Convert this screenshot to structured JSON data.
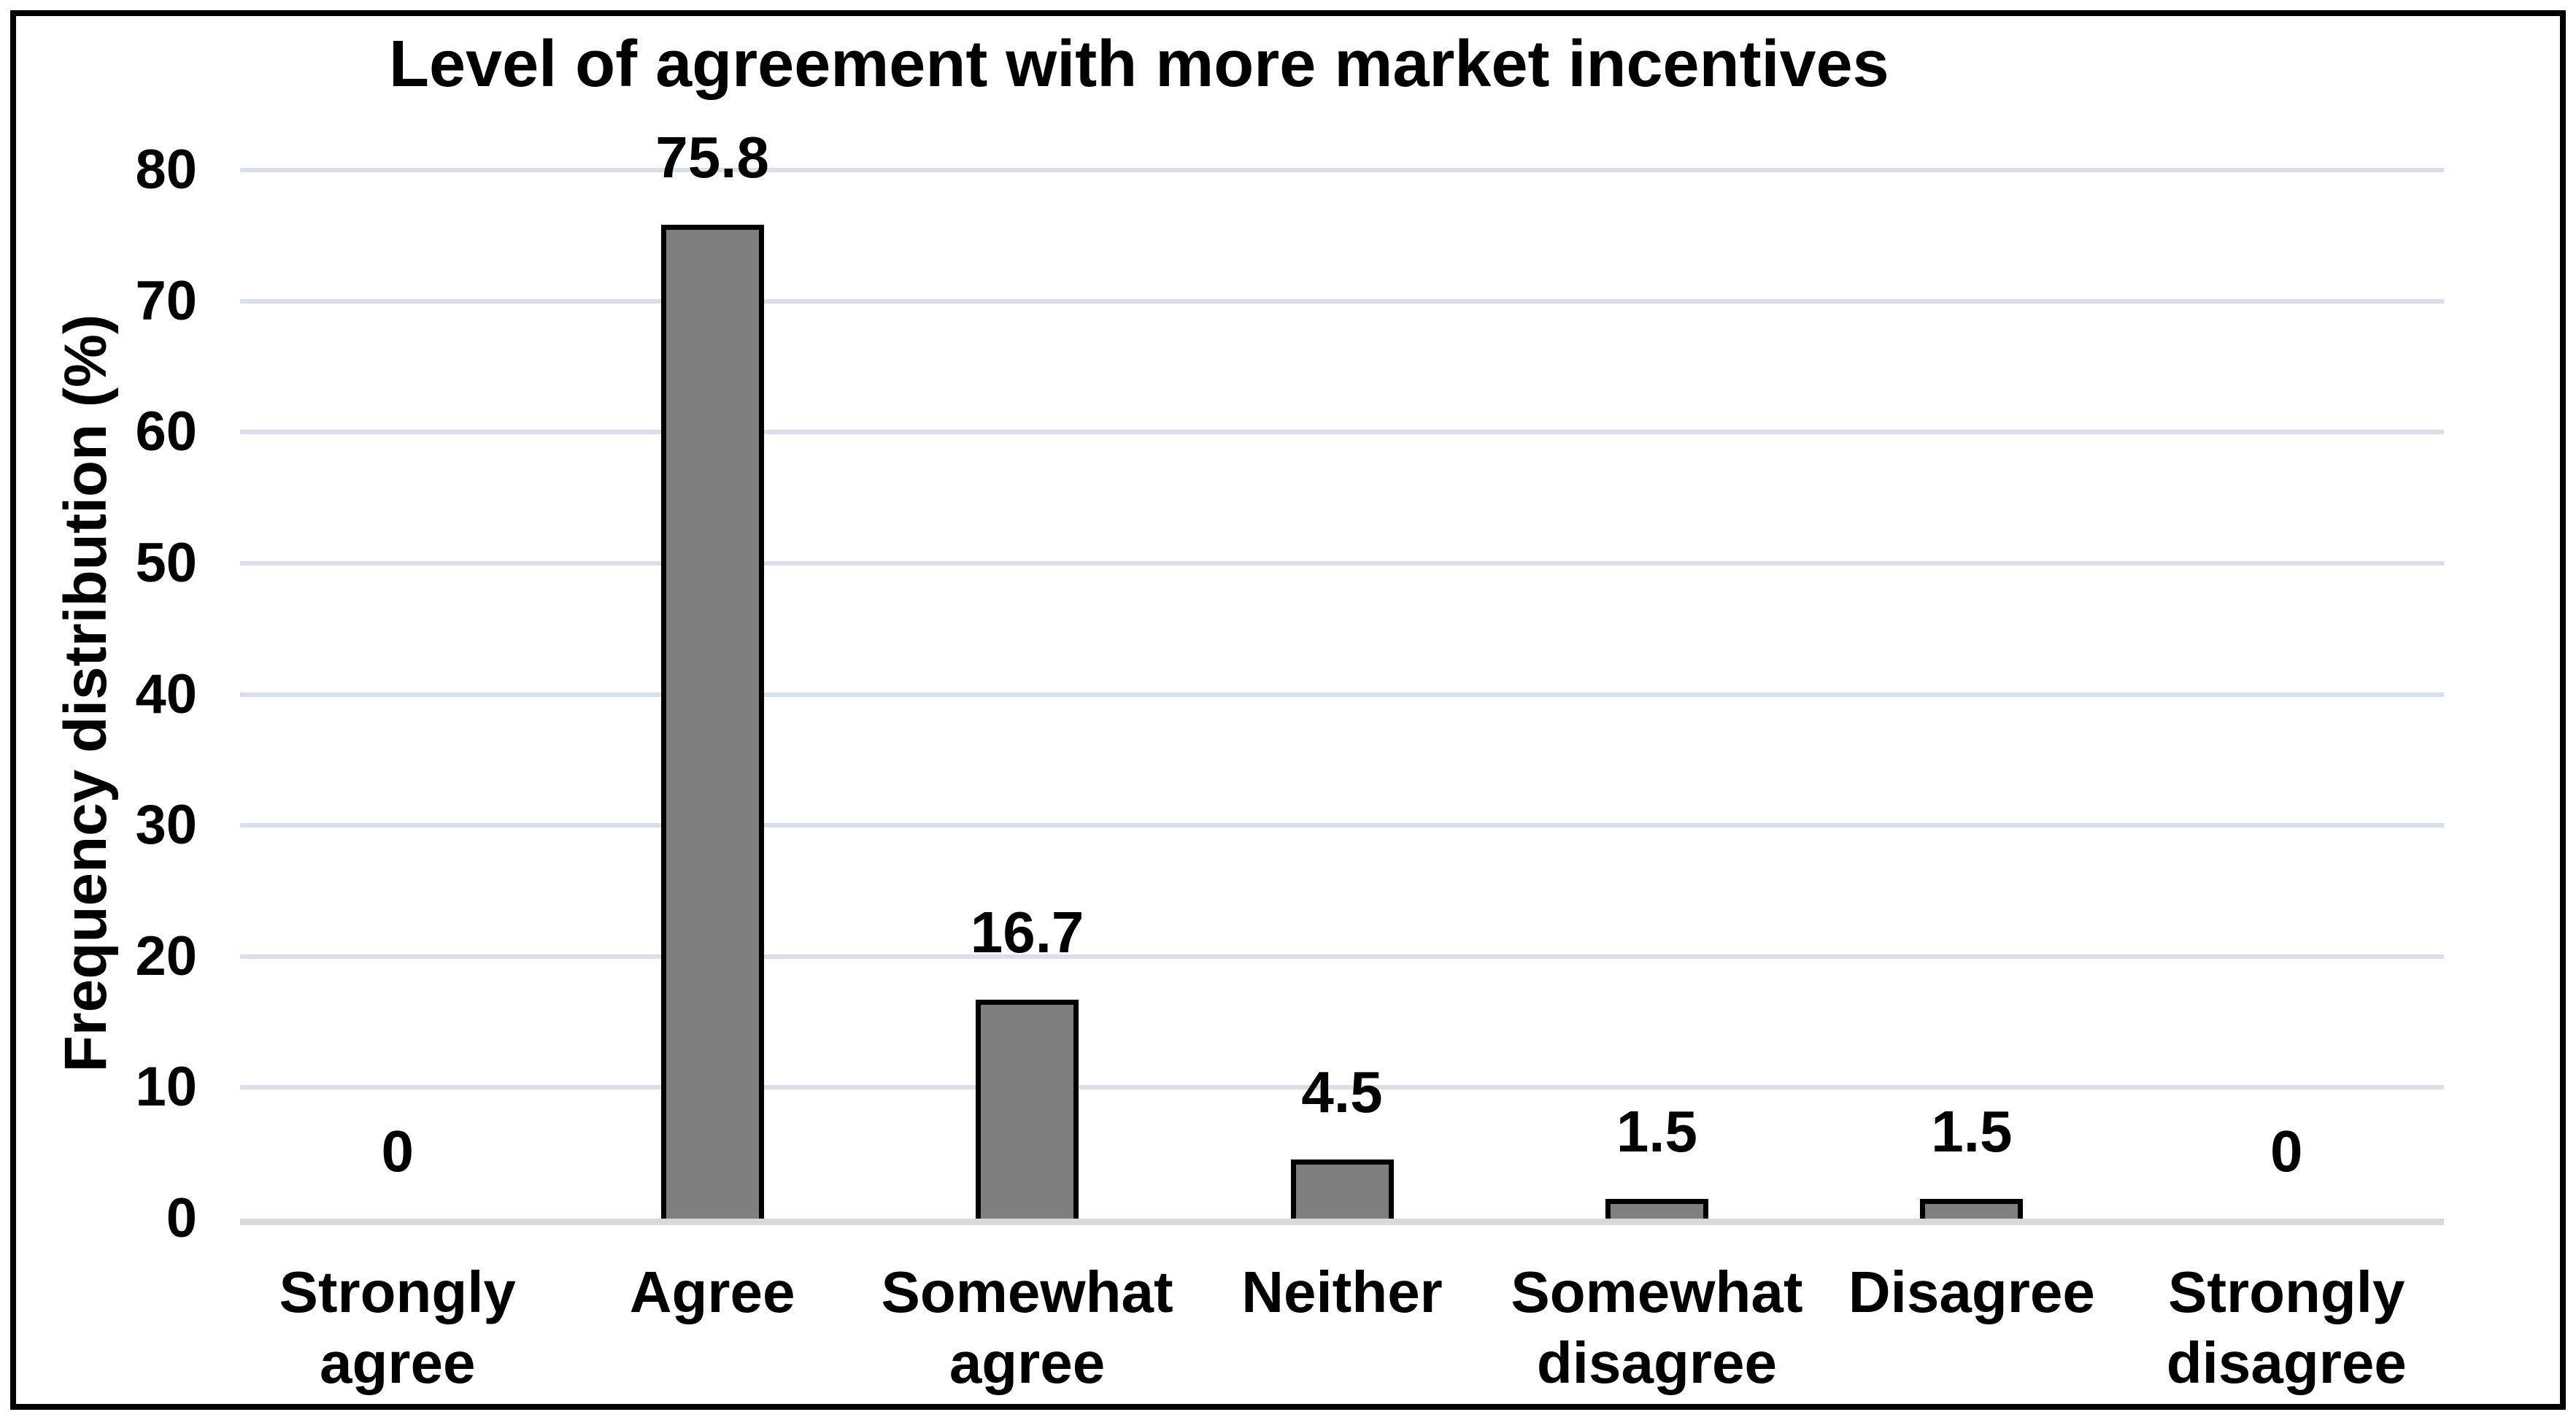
{
  "chart_data": {
    "type": "bar",
    "title": "Level of agreement with more market incentives",
    "ylabel": "Frequency distribution (%)",
    "xlabel": "",
    "categories": [
      "Strongly agree",
      "Agree",
      "Somewhat agree",
      "Neither",
      "Somewhat disagree",
      "Disagree",
      "Strongly disagree"
    ],
    "values": [
      0,
      75.8,
      16.7,
      4.5,
      1.5,
      1.5,
      0
    ],
    "data_labels": [
      "0",
      "75.8",
      "16.7",
      "4.5",
      "1.5",
      "1.5",
      "0"
    ],
    "ylim": [
      0,
      80
    ],
    "yticks": [
      0,
      10,
      20,
      30,
      40,
      50,
      60,
      70,
      80
    ],
    "grid": "horizontal-only",
    "legend": "none",
    "series_count": 1,
    "colors": {
      "bar_fill": "#7f7f7f",
      "bar_border": "#000000",
      "gridline": "#d9dfe8",
      "baseline": "#d9d9d9",
      "text": "#000000",
      "background": "#ffffff",
      "frame_border": "#000000"
    }
  }
}
